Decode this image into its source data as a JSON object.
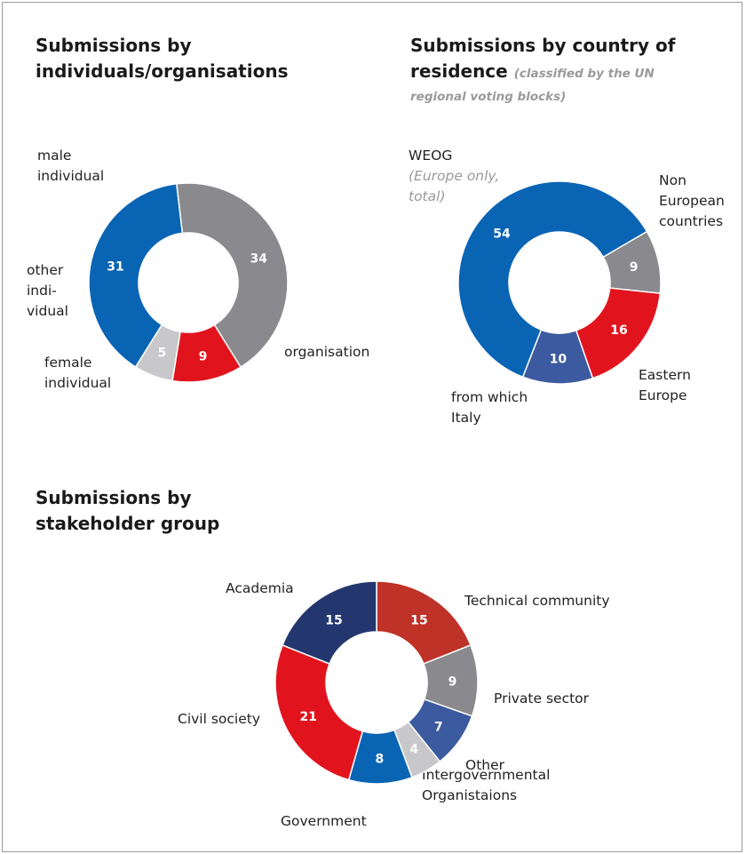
{
  "chart_data": [
    {
      "type": "pie",
      "title": "Submissions by individuals/organisations",
      "slices": [
        {
          "label": "male individual",
          "value": 31,
          "color": "#0a64b4"
        },
        {
          "label": "organisation",
          "value": 34,
          "color": "#8a898e"
        },
        {
          "label": "female individual",
          "value": 9,
          "color": "#e1141e"
        },
        {
          "label": "other individual",
          "value": 5,
          "color": "#c8c8cb"
        }
      ]
    },
    {
      "type": "pie",
      "title": "Submissions by country of residence",
      "subtitle": "(classified by the UN regional voting blocks)",
      "slices": [
        {
          "label": "Non European countries",
          "value": 9,
          "color": "#8a898e"
        },
        {
          "label": "Eastern Europe",
          "value": 16,
          "color": "#e1141e"
        },
        {
          "label": "from which Italy",
          "value": 10,
          "color": "#3c5a9f"
        },
        {
          "label": "WEOG",
          "value": 54,
          "color": "#0a64b4"
        }
      ],
      "annotations": [
        "(Europe only, total)"
      ]
    },
    {
      "type": "pie",
      "title": "Submissions by stakeholder group",
      "slices": [
        {
          "label": "Technical community",
          "value": 15,
          "color": "#be3228"
        },
        {
          "label": "Private sector",
          "value": 9,
          "color": "#8a898e"
        },
        {
          "label": "Other",
          "value": 7,
          "color": "#3c5a9f"
        },
        {
          "label": "Intergovernmental Organistaions",
          "value": 4,
          "color": "#c8c8cb"
        },
        {
          "label": "Government",
          "value": 8,
          "color": "#0a64b4"
        },
        {
          "label": "Civil society",
          "value": 21,
          "color": "#e1141e"
        },
        {
          "label": "Academia",
          "value": 15,
          "color": "#23376e"
        }
      ]
    }
  ],
  "labels": {
    "chart1": {
      "title_line1": "Submissions by",
      "title_line2": "individuals/organisations",
      "male_1": "male",
      "male_2": "individual",
      "other_1": "other",
      "other_2": "indi-",
      "other_3": "vidual",
      "female_1": "female",
      "female_2": "individual",
      "organisation": "organisation"
    },
    "chart2": {
      "title_line1": "Submissions by country of",
      "title_line2": "residence",
      "subtitle_1": "(classified by the UN",
      "subtitle_2": "regional voting blocks)",
      "weog": "WEOG",
      "europe_only_1": "(Europe only,",
      "europe_only_2": "total)",
      "non_1": "Non",
      "non_2": "European",
      "non_3": "countries",
      "eastern_1": "Eastern",
      "eastern_2": "Europe",
      "italy_1": "from which",
      "italy_2": "Italy"
    },
    "chart3": {
      "title_line1": "Submissions by",
      "title_line2": "stakeholder group",
      "academia": "Academia",
      "technical": "Technical community",
      "private": "Private sector",
      "civil": "Civil society",
      "other": "Other",
      "government": "Government",
      "igo_1": "Intergovernmental",
      "igo_2": "Organistaions"
    }
  }
}
